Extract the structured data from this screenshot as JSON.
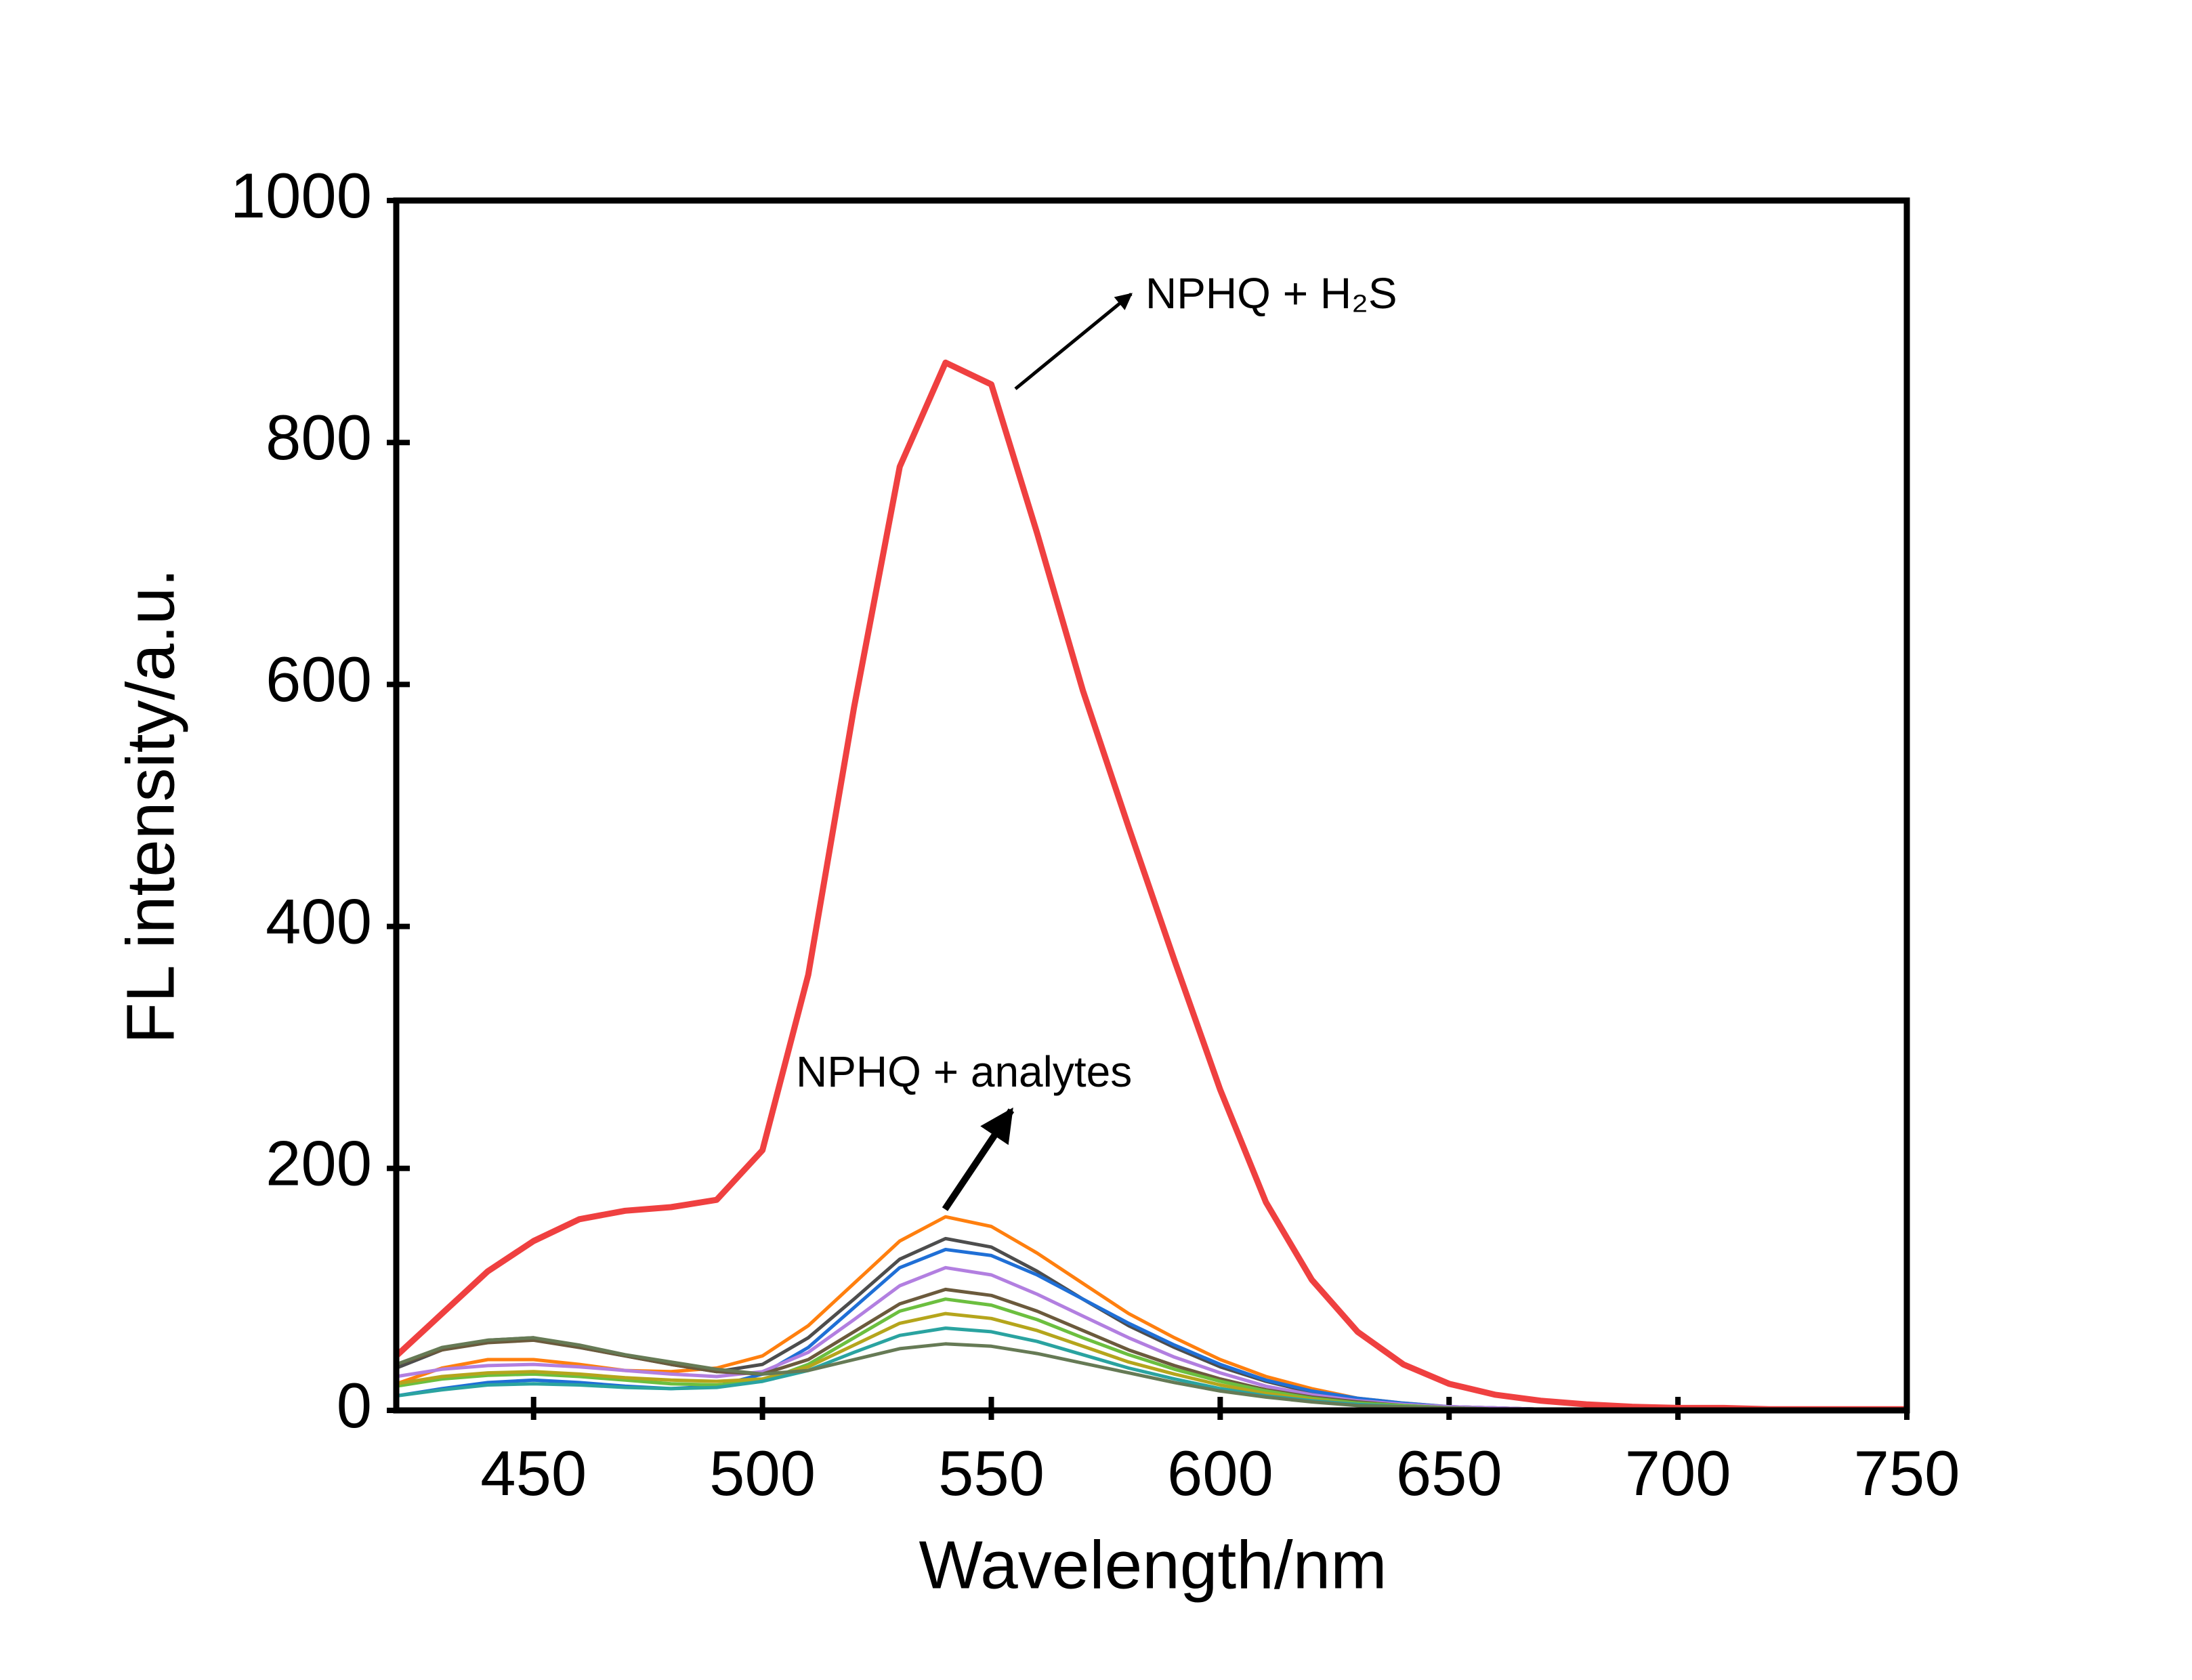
{
  "chart_data": {
    "type": "line",
    "xlabel": "Wavelength/nm",
    "ylabel": "FL intensity/a.u.",
    "x": [
      420,
      430,
      440,
      450,
      460,
      470,
      480,
      490,
      500,
      510,
      520,
      530,
      540,
      550,
      560,
      570,
      580,
      590,
      600,
      610,
      620,
      630,
      640,
      650,
      660,
      670,
      680,
      690,
      700,
      710,
      720,
      730,
      740,
      750
    ],
    "series": [
      {
        "color": "#ff7f0e",
        "values": [
          22,
          35,
          42,
          42,
          38,
          33,
          32,
          35,
          45,
          70,
          105,
          140,
          160,
          152,
          130,
          105,
          80,
          60,
          42,
          28,
          18,
          10,
          6,
          3,
          2,
          1,
          1,
          0,
          0,
          0,
          0,
          0,
          0,
          0
        ]
      },
      {
        "color": "#4d4d4d",
        "values": [
          35,
          50,
          58,
          60,
          52,
          45,
          38,
          32,
          38,
          60,
          92,
          125,
          142,
          135,
          115,
          92,
          70,
          52,
          36,
          24,
          15,
          9,
          5,
          3,
          2,
          1,
          1,
          0,
          0,
          0,
          0,
          0,
          0,
          0
        ]
      },
      {
        "color": "#1f6fd6",
        "values": [
          12,
          18,
          23,
          25,
          23,
          20,
          18,
          20,
          30,
          52,
          85,
          118,
          133,
          128,
          112,
          92,
          72,
          54,
          38,
          25,
          16,
          10,
          6,
          3,
          2,
          1,
          1,
          0,
          0,
          0,
          0,
          0,
          0,
          0
        ]
      },
      {
        "color": "#b27fe0",
        "values": [
          28,
          34,
          37,
          38,
          36,
          33,
          30,
          28,
          32,
          48,
          75,
          103,
          118,
          112,
          96,
          78,
          60,
          44,
          31,
          20,
          13,
          8,
          5,
          3,
          2,
          1,
          1,
          0,
          0,
          0,
          0,
          0,
          0,
          0
        ]
      },
      {
        "color": "#6b5a3c",
        "values": [
          38,
          50,
          56,
          58,
          52,
          45,
          38,
          32,
          30,
          42,
          65,
          88,
          100,
          95,
          82,
          66,
          50,
          37,
          26,
          17,
          11,
          7,
          4,
          2,
          1,
          1,
          0,
          0,
          0,
          0,
          0,
          0,
          0,
          0
        ]
      },
      {
        "color": "#6cbf3f",
        "values": [
          20,
          26,
          29,
          30,
          28,
          25,
          22,
          21,
          24,
          38,
          60,
          82,
          92,
          87,
          75,
          60,
          46,
          34,
          24,
          16,
          10,
          6,
          4,
          2,
          1,
          1,
          0,
          0,
          0,
          0,
          0,
          0,
          0,
          0
        ]
      },
      {
        "color": "#b5a51c",
        "values": [
          22,
          28,
          31,
          32,
          30,
          27,
          25,
          24,
          26,
          36,
          54,
          72,
          80,
          76,
          66,
          53,
          40,
          30,
          21,
          14,
          9,
          5,
          3,
          2,
          1,
          1,
          0,
          0,
          0,
          0,
          0,
          0,
          0,
          0
        ]
      },
      {
        "color": "#2aa3a0",
        "values": [
          12,
          17,
          21,
          22,
          21,
          19,
          18,
          19,
          24,
          33,
          48,
          62,
          68,
          65,
          57,
          46,
          35,
          26,
          18,
          12,
          8,
          5,
          3,
          2,
          1,
          0,
          0,
          0,
          0,
          0,
          0,
          0,
          0,
          0
        ]
      },
      {
        "color": "#667a55",
        "values": [
          38,
          52,
          58,
          60,
          54,
          46,
          40,
          34,
          30,
          33,
          42,
          51,
          55,
          53,
          47,
          39,
          31,
          23,
          16,
          11,
          7,
          4,
          3,
          2,
          1,
          0,
          0,
          0,
          0,
          0,
          0,
          0,
          0,
          0
        ]
      },
      {
        "color": "#ef4040",
        "values": [
          45,
          80,
          115,
          140,
          158,
          165,
          168,
          174,
          215,
          360,
          581,
          780,
          866,
          848,
          725,
          595,
          482,
          372,
          265,
          172,
          108,
          65,
          38,
          22,
          13,
          8,
          5,
          3,
          2,
          2,
          1,
          1,
          1,
          1
        ]
      }
    ],
    "xlim": [
      420,
      750
    ],
    "xticks": [
      450,
      500,
      550,
      600,
      650,
      700,
      750
    ],
    "ylim": [
      0,
      1000
    ],
    "yticks": [
      0,
      200,
      400,
      600,
      800,
      1000
    ],
    "annotations": [
      {
        "text": "NPHQ + H₂S"
      },
      {
        "text": "NPHQ + analytes"
      }
    ]
  }
}
